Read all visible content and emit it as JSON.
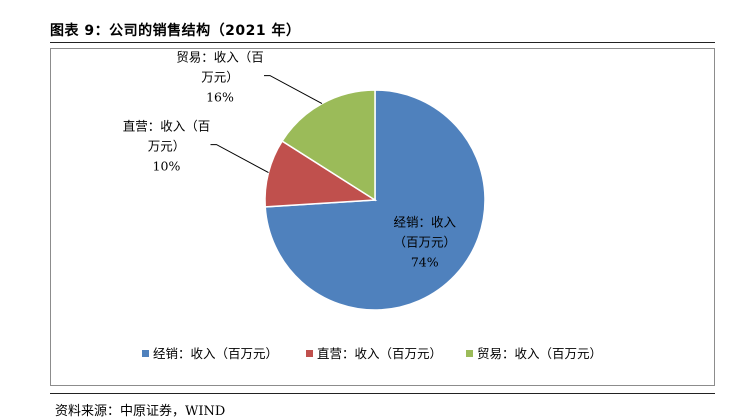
{
  "figure": {
    "title": "图表 9：公司的销售结构（2021 年）",
    "source": "资料来源：中原证券，WIND"
  },
  "chart_data": {
    "type": "pie",
    "title": "",
    "slices": [
      {
        "name": "经销：收入（百万元）",
        "value": 74,
        "label": "74%",
        "color": "#4F81BD",
        "callout": [
          "经销：收入",
          "（百万元）"
        ]
      },
      {
        "name": "直营：收入（百万元）",
        "value": 10,
        "label": "10%",
        "color": "#C0504D",
        "callout": [
          "直营：收入（百",
          "万元）"
        ]
      },
      {
        "name": "贸易：收入（百万元）",
        "value": 16,
        "label": "16%",
        "color": "#9BBB59",
        "callout": [
          "贸易：收入（百",
          "万元）"
        ]
      }
    ],
    "legend_position": "bottom",
    "start_angle": "12 o'clock",
    "direction": "clockwise"
  }
}
